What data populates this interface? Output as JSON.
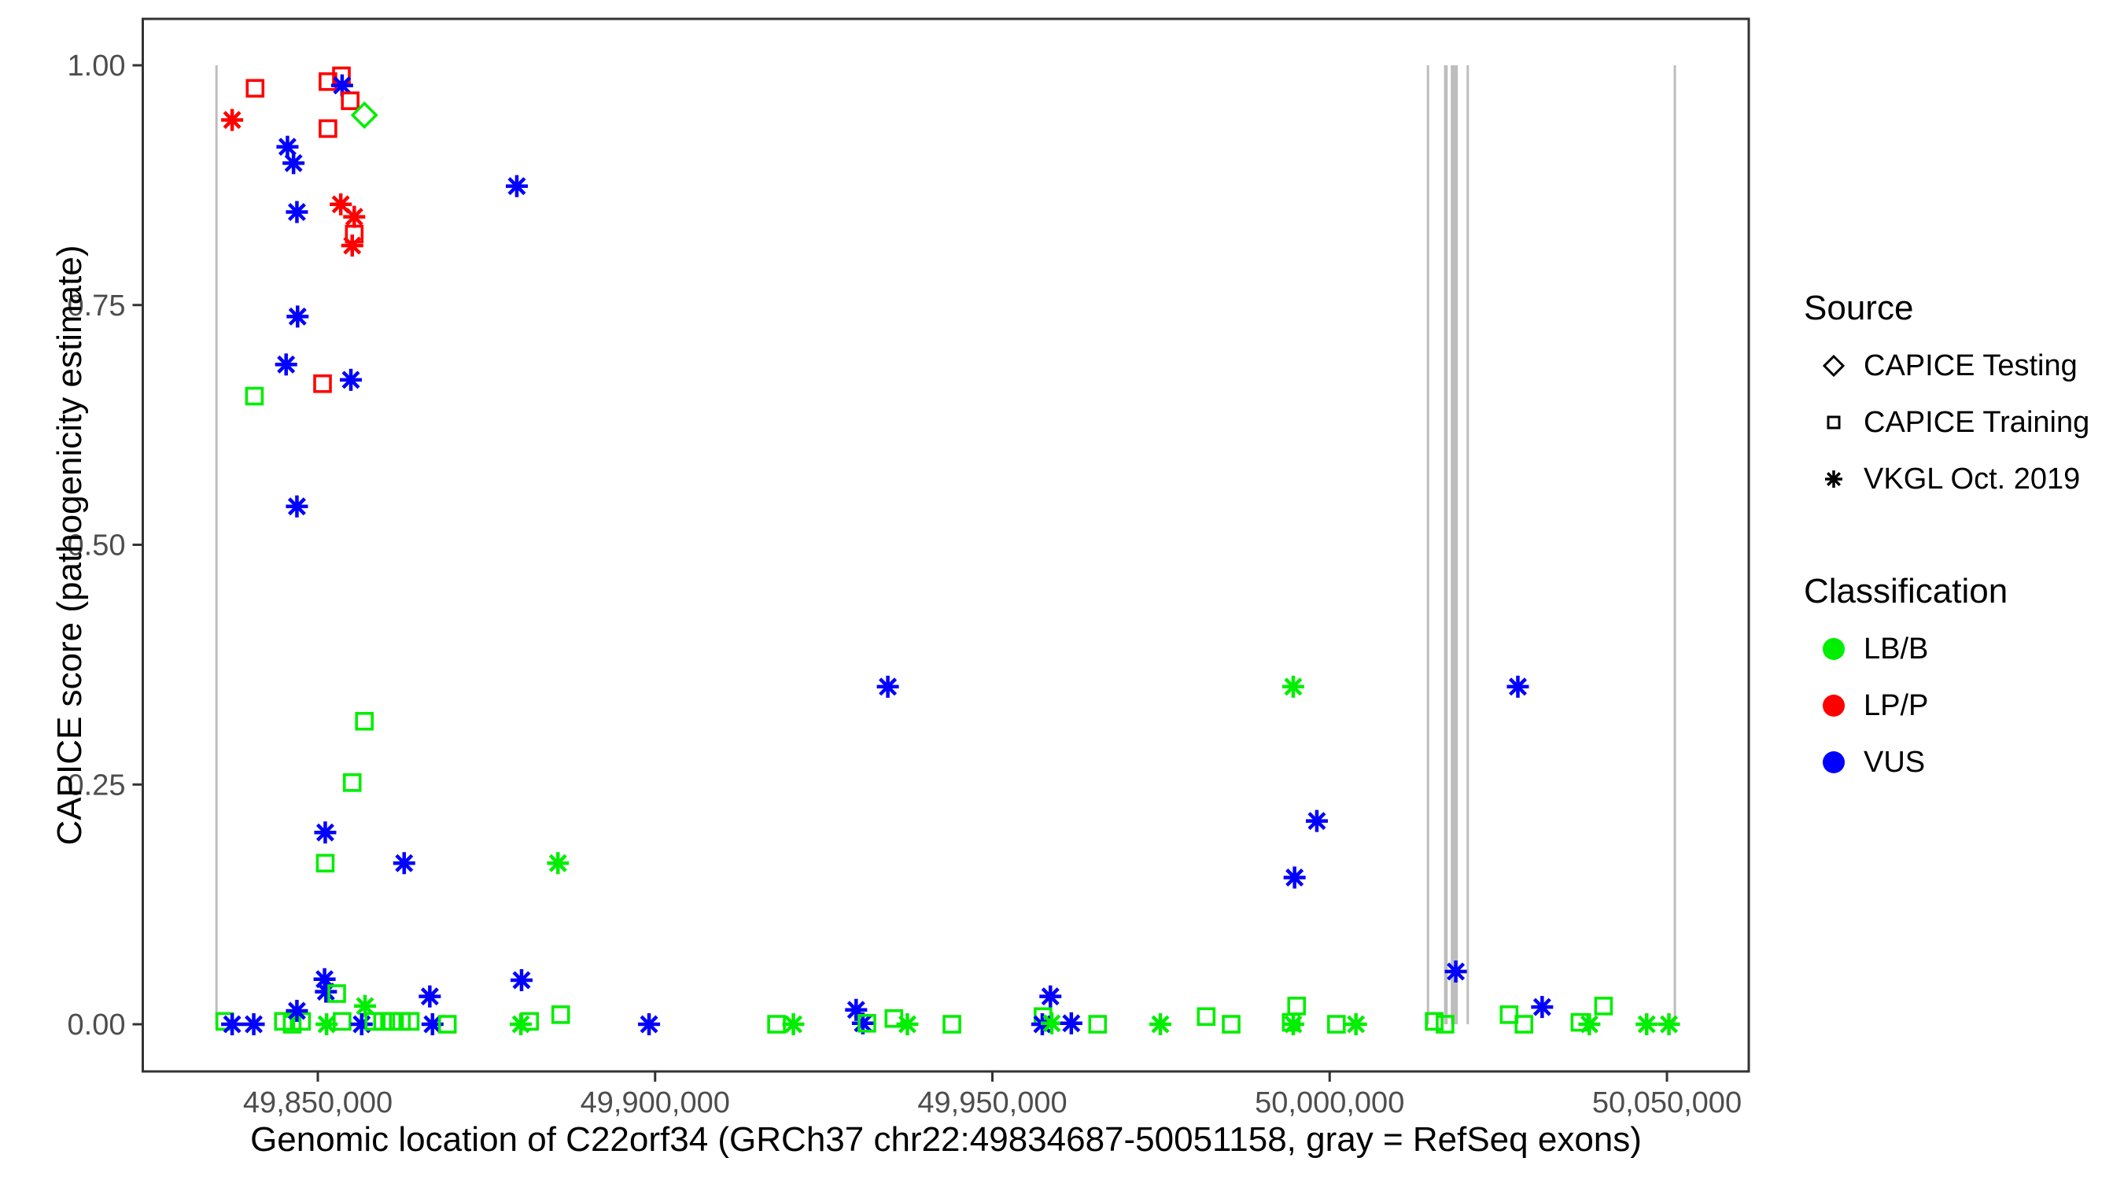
{
  "chart_data": {
    "type": "scatter",
    "title": "",
    "xlabel": "Genomic location of C22orf34 (GRCh37 chr22:49834687-50051158, gray = RefSeq exons)",
    "ylabel": "CAPICE score (pathogenicity estimate)",
    "x_axis": {
      "ticks": [
        49850000,
        49900000,
        49950000,
        50000000,
        50050000
      ],
      "tick_labels": [
        "49,850,000",
        "49,900,000",
        "49,950,000",
        "50,000,000",
        "50,050,000"
      ],
      "range": [
        49824050,
        50062130
      ]
    },
    "y_axis": {
      "ticks": [
        0,
        0.25,
        0.5,
        0.75,
        1
      ],
      "tick_labels": [
        "0.00",
        "0.25",
        "0.50",
        "0.75",
        "1.00"
      ],
      "range": [
        -0.0492,
        1.0484
      ]
    },
    "grid": "off",
    "legend_position": "right",
    "exon_color": "#BDBDBD",
    "exons": [
      [
        49834800,
        49835150
      ],
      [
        50014400,
        50014750
      ],
      [
        50016950,
        50017500
      ],
      [
        50017950,
        50019000
      ],
      [
        50020300,
        50020650
      ],
      [
        50051000,
        50051350
      ]
    ],
    "class_colors": {
      "LB/B": "#00EE00",
      "LP/P": "#FF0000",
      "VUS": "#0000FF"
    },
    "source_markers": {
      "testing": "diamond",
      "training": "square",
      "vkgl": "asterisk"
    },
    "points": [
      [
        49837300,
        0.943,
        "vkgl",
        "LP/P"
      ],
      [
        49840700,
        0.976,
        "training",
        "LP/P"
      ],
      [
        49851500,
        0.983,
        "training",
        "LP/P"
      ],
      [
        49853500,
        0.989,
        "training",
        "LP/P"
      ],
      [
        49853600,
        0.979,
        "vkgl",
        "VUS"
      ],
      [
        49854800,
        0.963,
        "training",
        "LP/P"
      ],
      [
        49856900,
        0.948,
        "testing",
        "LB/B"
      ],
      [
        49851500,
        0.934,
        "training",
        "LP/P"
      ],
      [
        49845500,
        0.915,
        "vkgl",
        "VUS"
      ],
      [
        49846400,
        0.898,
        "vkgl",
        "VUS"
      ],
      [
        49846900,
        0.847,
        "vkgl",
        "VUS"
      ],
      [
        49853400,
        0.855,
        "vkgl",
        "LP/P"
      ],
      [
        49855400,
        0.842,
        "vkgl",
        "LP/P"
      ],
      [
        49855400,
        0.824,
        "training",
        "LP/P"
      ],
      [
        49855100,
        0.812,
        "vkgl",
        "LP/P"
      ],
      [
        49879500,
        0.874,
        "vkgl",
        "VUS"
      ],
      [
        49847000,
        0.738,
        "vkgl",
        "VUS"
      ],
      [
        49845300,
        0.688,
        "vkgl",
        "VUS"
      ],
      [
        49850700,
        0.668,
        "training",
        "LP/P"
      ],
      [
        49854900,
        0.672,
        "vkgl",
        "VUS"
      ],
      [
        49840600,
        0.655,
        "training",
        "LB/B"
      ],
      [
        49846900,
        0.54,
        "vkgl",
        "VUS"
      ],
      [
        49856900,
        0.316,
        "training",
        "LB/B"
      ],
      [
        49855100,
        0.252,
        "training",
        "LB/B"
      ],
      [
        49851100,
        0.2,
        "vkgl",
        "VUS"
      ],
      [
        49851100,
        0.168,
        "training",
        "LB/B"
      ],
      [
        49862800,
        0.168,
        "vkgl",
        "VUS"
      ],
      [
        49885600,
        0.168,
        "vkgl",
        "LB/B"
      ],
      [
        49994600,
        0.352,
        "vkgl",
        "LB/B"
      ],
      [
        50027900,
        0.352,
        "vkgl",
        "VUS"
      ],
      [
        49934500,
        0.352,
        "vkgl",
        "VUS"
      ],
      [
        49998100,
        0.212,
        "vkgl",
        "VUS"
      ],
      [
        49994800,
        0.153,
        "vkgl",
        "VUS"
      ],
      [
        49836200,
        0.003,
        "training",
        "LB/B"
      ],
      [
        49837300,
        0.0,
        "vkgl",
        "VUS"
      ],
      [
        49840500,
        0.0,
        "vkgl",
        "VUS"
      ],
      [
        49844900,
        0.003,
        "training",
        "LB/B"
      ],
      [
        49846200,
        0.0,
        "training",
        "LB/B"
      ],
      [
        49847600,
        0.003,
        "training",
        "LB/B"
      ],
      [
        49846900,
        0.014,
        "vkgl",
        "VUS"
      ],
      [
        49851000,
        0.047,
        "vkgl",
        "VUS"
      ],
      [
        49851200,
        0.034,
        "vkgl",
        "VUS"
      ],
      [
        49852800,
        0.032,
        "training",
        "LB/B"
      ],
      [
        49851300,
        0.0,
        "vkgl",
        "LB/B"
      ],
      [
        49853600,
        0.003,
        "training",
        "LB/B"
      ],
      [
        49857000,
        0.019,
        "vkgl",
        "LB/B"
      ],
      [
        49856500,
        0.0,
        "vkgl",
        "VUS"
      ],
      [
        49858300,
        0.003,
        "training",
        "LB/B"
      ],
      [
        49859600,
        0.003,
        "training",
        "LB/B"
      ],
      [
        49861000,
        0.003,
        "training",
        "LB/B"
      ],
      [
        49862400,
        0.003,
        "training",
        "LB/B"
      ],
      [
        49863700,
        0.003,
        "training",
        "LB/B"
      ],
      [
        49866600,
        0.029,
        "vkgl",
        "VUS"
      ],
      [
        49867000,
        0.0,
        "vkgl",
        "VUS"
      ],
      [
        49869200,
        0.0,
        "training",
        "LB/B"
      ],
      [
        49880200,
        0.046,
        "vkgl",
        "VUS"
      ],
      [
        49880100,
        0.0,
        "vkgl",
        "LB/B"
      ],
      [
        49881400,
        0.003,
        "training",
        "LB/B"
      ],
      [
        49886000,
        0.01,
        "training",
        "LB/B"
      ],
      [
        49899100,
        0.0,
        "vkgl",
        "VUS"
      ],
      [
        49918000,
        0.0,
        "training",
        "LB/B"
      ],
      [
        49920500,
        0.0,
        "vkgl",
        "LB/B"
      ],
      [
        49929800,
        0.015,
        "vkgl",
        "VUS"
      ],
      [
        49930800,
        0.001,
        "vkgl",
        "VUS"
      ],
      [
        49931400,
        0.001,
        "training",
        "LB/B"
      ],
      [
        49935400,
        0.006,
        "training",
        "LB/B"
      ],
      [
        49937400,
        0.0,
        "vkgl",
        "LB/B"
      ],
      [
        49944000,
        0.0,
        "training",
        "LB/B"
      ],
      [
        49958600,
        0.029,
        "vkgl",
        "VUS"
      ],
      [
        49957500,
        0.008,
        "training",
        "LB/B"
      ],
      [
        49957400,
        0.0,
        "vkgl",
        "VUS"
      ],
      [
        49958800,
        0.001,
        "vkgl",
        "LB/B"
      ],
      [
        49961700,
        0.001,
        "vkgl",
        "VUS"
      ],
      [
        49965600,
        0.0,
        "training",
        "LB/B"
      ],
      [
        49974900,
        0.0,
        "vkgl",
        "LB/B"
      ],
      [
        49981700,
        0.008,
        "training",
        "LB/B"
      ],
      [
        49985400,
        0.0,
        "training",
        "LB/B"
      ],
      [
        49995100,
        0.019,
        "training",
        "LB/B"
      ],
      [
        49994300,
        0.002,
        "training",
        "LB/B"
      ],
      [
        49994600,
        0.0,
        "vkgl",
        "LB/B"
      ],
      [
        50001000,
        0.0,
        "training",
        "LB/B"
      ],
      [
        50003900,
        0.0,
        "vkgl",
        "LB/B"
      ],
      [
        50015500,
        0.003,
        "training",
        "LB/B"
      ],
      [
        50017100,
        0.0,
        "training",
        "LB/B"
      ],
      [
        50018700,
        0.055,
        "vkgl",
        "VUS"
      ],
      [
        50026600,
        0.01,
        "training",
        "LB/B"
      ],
      [
        50028800,
        0.0,
        "training",
        "LB/B"
      ],
      [
        50031500,
        0.018,
        "vkgl",
        "VUS"
      ],
      [
        50037100,
        0.002,
        "training",
        "LB/B"
      ],
      [
        50038500,
        0.0,
        "vkgl",
        "LB/B"
      ],
      [
        50040600,
        0.019,
        "training",
        "LB/B"
      ],
      [
        50047000,
        0.0,
        "vkgl",
        "LB/B"
      ],
      [
        50050300,
        0.0,
        "vkgl",
        "LB/B"
      ]
    ]
  },
  "legend": {
    "source": {
      "title": "Source",
      "items": [
        {
          "label": "CAPICE Testing",
          "marker": "diamond"
        },
        {
          "label": "CAPICE Training",
          "marker": "square"
        },
        {
          "label": "VKGL Oct. 2019",
          "marker": "asterisk"
        }
      ]
    },
    "classification": {
      "title": "Classification",
      "items": [
        {
          "label": "LB/B",
          "color": "#00EE00"
        },
        {
          "label": "LP/P",
          "color": "#FF0000"
        },
        {
          "label": "VUS",
          "color": "#0000FF"
        }
      ]
    }
  }
}
